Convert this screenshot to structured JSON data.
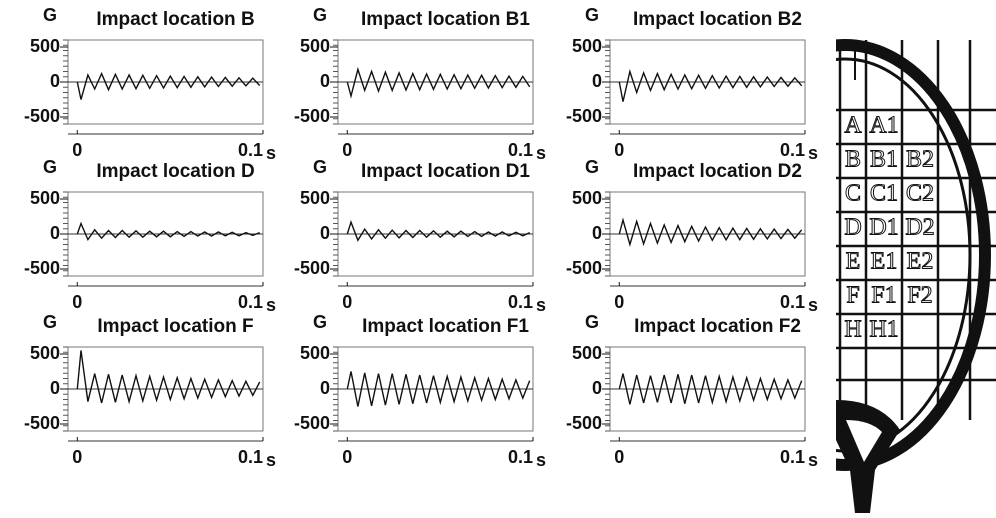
{
  "chart_data": [
    {
      "type": "line",
      "title": "Impact location B",
      "y_label": "G",
      "x_label": "s",
      "color": "#111111",
      "x": [
        0,
        0.002,
        0.0057,
        0.0094,
        0.0131,
        0.0168,
        0.0205,
        0.0242,
        0.0279,
        0.0316,
        0.0353,
        0.039,
        0.0427,
        0.0464,
        0.0501,
        0.0538,
        0.0575,
        0.0612,
        0.0649,
        0.0686,
        0.0723,
        0.076,
        0.0797,
        0.0834,
        0.0871,
        0.0908,
        0.0945,
        0.0982
      ],
      "values": [
        0,
        -250,
        100,
        -100,
        120,
        -110,
        110,
        -100,
        100,
        -95,
        95,
        -90,
        90,
        -85,
        85,
        -80,
        80,
        -75,
        75,
        -70,
        70,
        -65,
        65,
        -60,
        60,
        -55,
        55,
        -50
      ],
      "xlim": [
        -0.005,
        0.1
      ],
      "ylim": [
        -600,
        600
      ],
      "xticks": [
        0,
        0.1
      ],
      "yticks": [
        500,
        0,
        -500
      ]
    },
    {
      "type": "line",
      "title": "Impact location B1",
      "y_label": "G",
      "x_label": "s",
      "color": "#111111",
      "x": [
        0,
        0.002,
        0.0057,
        0.0094,
        0.0131,
        0.0168,
        0.0205,
        0.0242,
        0.0279,
        0.0316,
        0.0353,
        0.039,
        0.0427,
        0.0464,
        0.0501,
        0.0538,
        0.0575,
        0.0612,
        0.0649,
        0.0686,
        0.0723,
        0.076,
        0.0797,
        0.0834,
        0.0871,
        0.0908,
        0.0945,
        0.0982
      ],
      "values": [
        0,
        -200,
        180,
        -120,
        150,
        -130,
        140,
        -120,
        130,
        -115,
        120,
        -110,
        115,
        -105,
        110,
        -100,
        105,
        -95,
        100,
        -90,
        95,
        -85,
        90,
        -80,
        85,
        -75,
        80,
        -70
      ],
      "xlim": [
        -0.005,
        0.1
      ],
      "ylim": [
        -600,
        600
      ],
      "xticks": [
        0,
        0.1
      ],
      "yticks": [
        500,
        0,
        -500
      ]
    },
    {
      "type": "line",
      "title": "Impact location B2",
      "y_label": "G",
      "x_label": "s",
      "color": "#111111",
      "x": [
        0,
        0.002,
        0.0057,
        0.0094,
        0.0131,
        0.0168,
        0.0205,
        0.0242,
        0.0279,
        0.0316,
        0.0353,
        0.039,
        0.0427,
        0.0464,
        0.0501,
        0.0538,
        0.0575,
        0.0612,
        0.0649,
        0.0686,
        0.0723,
        0.076,
        0.0797,
        0.0834,
        0.0871,
        0.0908,
        0.0945,
        0.0982
      ],
      "values": [
        0,
        -280,
        150,
        -150,
        130,
        -120,
        120,
        -110,
        110,
        -100,
        100,
        -95,
        95,
        -90,
        90,
        -85,
        85,
        -80,
        80,
        -75,
        75,
        -70,
        70,
        -65,
        65,
        -60,
        60,
        -55
      ],
      "xlim": [
        -0.005,
        0.1
      ],
      "ylim": [
        -600,
        600
      ],
      "xticks": [
        0,
        0.1
      ],
      "yticks": [
        500,
        0,
        -500
      ]
    },
    {
      "type": "line",
      "title": "Impact location D",
      "y_label": "G",
      "x_label": "s",
      "color": "#111111",
      "x": [
        0,
        0.002,
        0.0057,
        0.0094,
        0.0131,
        0.0168,
        0.0205,
        0.0242,
        0.0279,
        0.0316,
        0.0353,
        0.039,
        0.0427,
        0.0464,
        0.0501,
        0.0538,
        0.0575,
        0.0612,
        0.0649,
        0.0686,
        0.0723,
        0.076,
        0.0797,
        0.0834,
        0.0871,
        0.0908,
        0.0945,
        0.0982
      ],
      "values": [
        0,
        150,
        -80,
        60,
        -60,
        50,
        -50,
        50,
        -45,
        45,
        -45,
        40,
        -40,
        40,
        -40,
        35,
        -35,
        35,
        -30,
        30,
        -30,
        30,
        -25,
        25,
        -25,
        20,
        -20,
        20
      ],
      "xlim": [
        -0.005,
        0.1
      ],
      "ylim": [
        -600,
        600
      ],
      "xticks": [
        0,
        0.1
      ],
      "yticks": [
        500,
        0,
        -500
      ]
    },
    {
      "type": "line",
      "title": "Impact location D1",
      "y_label": "G",
      "x_label": "s",
      "color": "#111111",
      "x": [
        0,
        0.002,
        0.0057,
        0.0094,
        0.0131,
        0.0168,
        0.0205,
        0.0242,
        0.0279,
        0.0316,
        0.0353,
        0.039,
        0.0427,
        0.0464,
        0.0501,
        0.0538,
        0.0575,
        0.0612,
        0.0649,
        0.0686,
        0.0723,
        0.076,
        0.0797,
        0.0834,
        0.0871,
        0.0908,
        0.0945,
        0.0982
      ],
      "values": [
        0,
        170,
        -90,
        70,
        -70,
        60,
        -60,
        55,
        -55,
        50,
        -50,
        50,
        -45,
        45,
        -45,
        40,
        -40,
        40,
        -35,
        35,
        -35,
        30,
        -30,
        30,
        -25,
        25,
        -25,
        20
      ],
      "xlim": [
        -0.005,
        0.1
      ],
      "ylim": [
        -600,
        600
      ],
      "xticks": [
        0,
        0.1
      ],
      "yticks": [
        500,
        0,
        -500
      ]
    },
    {
      "type": "line",
      "title": "Impact location D2",
      "y_label": "G",
      "x_label": "s",
      "color": "#111111",
      "x": [
        0,
        0.002,
        0.0057,
        0.0094,
        0.0131,
        0.0168,
        0.0205,
        0.0242,
        0.0279,
        0.0316,
        0.0353,
        0.039,
        0.0427,
        0.0464,
        0.0501,
        0.0538,
        0.0575,
        0.0612,
        0.0649,
        0.0686,
        0.0723,
        0.076,
        0.0797,
        0.0834,
        0.0871,
        0.0908,
        0.0945,
        0.0982
      ],
      "values": [
        0,
        200,
        -150,
        180,
        -140,
        150,
        -130,
        130,
        -120,
        120,
        -110,
        110,
        -100,
        100,
        -90,
        90,
        -85,
        85,
        -80,
        80,
        -75,
        75,
        -70,
        70,
        -65,
        65,
        -60,
        60
      ],
      "xlim": [
        -0.005,
        0.1
      ],
      "ylim": [
        -600,
        600
      ],
      "xticks": [
        0,
        0.1
      ],
      "yticks": [
        500,
        0,
        -500
      ]
    },
    {
      "type": "line",
      "title": "Impact location F",
      "y_label": "G",
      "x_label": "s",
      "color": "#111111",
      "x": [
        0,
        0.002,
        0.0057,
        0.0094,
        0.0131,
        0.0168,
        0.0205,
        0.0242,
        0.0279,
        0.0316,
        0.0353,
        0.039,
        0.0427,
        0.0464,
        0.0501,
        0.0538,
        0.0575,
        0.0612,
        0.0649,
        0.0686,
        0.0723,
        0.076,
        0.0797,
        0.0834,
        0.0871,
        0.0908,
        0.0945,
        0.0982
      ],
      "values": [
        0,
        550,
        -180,
        220,
        -200,
        210,
        -190,
        200,
        -180,
        190,
        -170,
        180,
        -160,
        170,
        -150,
        160,
        -140,
        150,
        -130,
        140,
        -120,
        130,
        -110,
        120,
        -100,
        110,
        -90,
        100
      ],
      "xlim": [
        -0.005,
        0.1
      ],
      "ylim": [
        -600,
        600
      ],
      "xticks": [
        0,
        0.1
      ],
      "yticks": [
        500,
        0,
        -500
      ]
    },
    {
      "type": "line",
      "title": "Impact location F1",
      "y_label": "G",
      "x_label": "s",
      "color": "#111111",
      "x": [
        0,
        0.002,
        0.0057,
        0.0094,
        0.0131,
        0.0168,
        0.0205,
        0.0242,
        0.0279,
        0.0316,
        0.0353,
        0.039,
        0.0427,
        0.0464,
        0.0501,
        0.0538,
        0.0575,
        0.0612,
        0.0649,
        0.0686,
        0.0723,
        0.076,
        0.0797,
        0.0834,
        0.0871,
        0.0908,
        0.0945,
        0.0982
      ],
      "values": [
        0,
        250,
        -250,
        230,
        -240,
        220,
        -230,
        220,
        -220,
        210,
        -210,
        200,
        -200,
        190,
        -190,
        180,
        -180,
        170,
        -170,
        160,
        -160,
        150,
        -150,
        140,
        -140,
        130,
        -130,
        120
      ],
      "xlim": [
        -0.005,
        0.1
      ],
      "ylim": [
        -600,
        600
      ],
      "xticks": [
        0,
        0.1
      ],
      "yticks": [
        500,
        0,
        -500
      ]
    },
    {
      "type": "line",
      "title": "Impact location F2",
      "y_label": "G",
      "x_label": "s",
      "color": "#111111",
      "x": [
        0,
        0.002,
        0.0057,
        0.0094,
        0.0131,
        0.0168,
        0.0205,
        0.0242,
        0.0279,
        0.0316,
        0.0353,
        0.039,
        0.0427,
        0.0464,
        0.0501,
        0.0538,
        0.0575,
        0.0612,
        0.0649,
        0.0686,
        0.0723,
        0.076,
        0.0797,
        0.0834,
        0.0871,
        0.0908,
        0.0945,
        0.0982
      ],
      "values": [
        0,
        220,
        -220,
        200,
        -200,
        190,
        -190,
        200,
        -200,
        210,
        -210,
        200,
        -200,
        190,
        -190,
        180,
        -180,
        170,
        -170,
        160,
        -160,
        150,
        -150,
        140,
        -140,
        130,
        -130,
        120
      ],
      "xlim": [
        -0.005,
        0.1
      ],
      "ylim": [
        -600,
        600
      ],
      "xticks": [
        0,
        0.1
      ],
      "yticks": [
        500,
        0,
        -500
      ]
    }
  ],
  "racket": {
    "rows": [
      [
        "A",
        "A1"
      ],
      [
        "B",
        "B1",
        "B2"
      ],
      [
        "C",
        "C1",
        "C2"
      ],
      [
        "D",
        "D1",
        "D2"
      ],
      [
        "E",
        "E1",
        "E2"
      ],
      [
        "F",
        "F1",
        "F2"
      ],
      [
        "H",
        "H1"
      ]
    ]
  }
}
